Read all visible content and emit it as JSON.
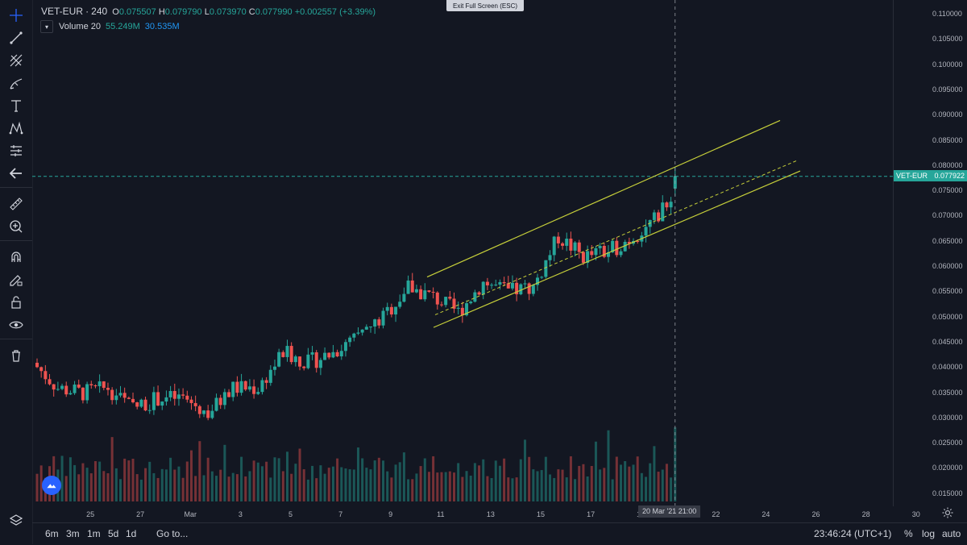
{
  "legend": {
    "symbol": "VET-EUR",
    "separator": "·",
    "interval": "240",
    "open_key": "O",
    "open": "0.075507",
    "high_key": "H",
    "high": "0.079790",
    "low_key": "L",
    "low": "0.073970",
    "close_key": "C",
    "close": "0.077990",
    "change": "+0.002557 (+3.39%)"
  },
  "volume_legend": {
    "toggle_icon": "chevron-down-icon",
    "label": "Volume 20",
    "value": "55.249M",
    "ma_value": "30.535M"
  },
  "fullscreen": {
    "label": "Exit Full Screen (ESC)"
  },
  "price_axis": {
    "ticks": [
      "0.110000",
      "0.105000",
      "0.100000",
      "0.095000",
      "0.090000",
      "0.085000",
      "0.080000",
      "0.075000",
      "0.070000",
      "0.065000",
      "0.060000",
      "0.055000",
      "0.050000",
      "0.045000",
      "0.040000",
      "0.035000",
      "0.030000",
      "0.025000",
      "0.020000",
      "0.015000"
    ],
    "last_symbol": "VET-EUR",
    "last_value": "0.077922"
  },
  "time_axis": {
    "ticks": [
      "25",
      "27",
      "Mar",
      "3",
      "5",
      "7",
      "9",
      "11",
      "13",
      "15",
      "17",
      "19",
      "22",
      "24",
      "26",
      "28",
      "30"
    ],
    "crosshair_label": "20 Mar '21   21:00"
  },
  "bottom_bar": {
    "ranges": [
      "6m",
      "3m",
      "1m",
      "5d",
      "1d"
    ],
    "goto": "Go to...",
    "clock": "23:46:24 (UTC+1)",
    "percent": "%",
    "log": "log",
    "auto": "auto"
  },
  "colors": {
    "background": "#131722",
    "up": "#26a69a",
    "down": "#ef5350",
    "channel": "#c6cf3a",
    "price_line": "#26a69a"
  },
  "toolbar_icons": [
    "crosshair-icon",
    "trend-line-icon",
    "pitchfork-icon",
    "brush-icon",
    "text-icon",
    "pattern-icon",
    "prediction-icon",
    "back-icon",
    "ruler-icon",
    "zoom-in-icon",
    "magnet-icon",
    "lock-drawing-icon",
    "lock-icon",
    "eye-icon",
    "trash-icon",
    "layers-icon"
  ],
  "chart_data": {
    "type": "candlestick",
    "title": "",
    "xlabel": "",
    "ylabel": "",
    "ylim": [
      0.012,
      0.113
    ],
    "x": [
      "Feb 23",
      "Feb 24",
      "Feb 25",
      "Feb 26",
      "Feb 27",
      "Feb 28",
      "Mar 1",
      "Mar 2",
      "Mar 3",
      "Mar 4",
      "Mar 5",
      "Mar 6",
      "Mar 7",
      "Mar 8",
      "Mar 9",
      "Mar 10",
      "Mar 11",
      "Mar 12",
      "Mar 13",
      "Mar 14",
      "Mar 15",
      "Mar 16",
      "Mar 17",
      "Mar 18",
      "Mar 19",
      "Mar 20"
    ],
    "series": [
      {
        "name": "",
        "type": "close",
        "values": [
          0.036,
          0.035,
          0.036,
          0.032,
          0.034,
          0.034,
          0.031,
          0.036,
          0.036,
          0.043,
          0.041,
          0.043,
          0.046,
          0.05,
          0.056,
          0.054,
          0.051,
          0.057,
          0.055,
          0.056,
          0.066,
          0.062,
          0.063,
          0.066,
          0.07,
          0.078
        ]
      }
    ],
    "volume_ylim": [
      0,
      0.028
    ],
    "last_price": 0.077922,
    "channel": {
      "upper": [
        0.058,
        0.089
      ],
      "lower": [
        0.048,
        0.079
      ]
    },
    "grid": false
  }
}
